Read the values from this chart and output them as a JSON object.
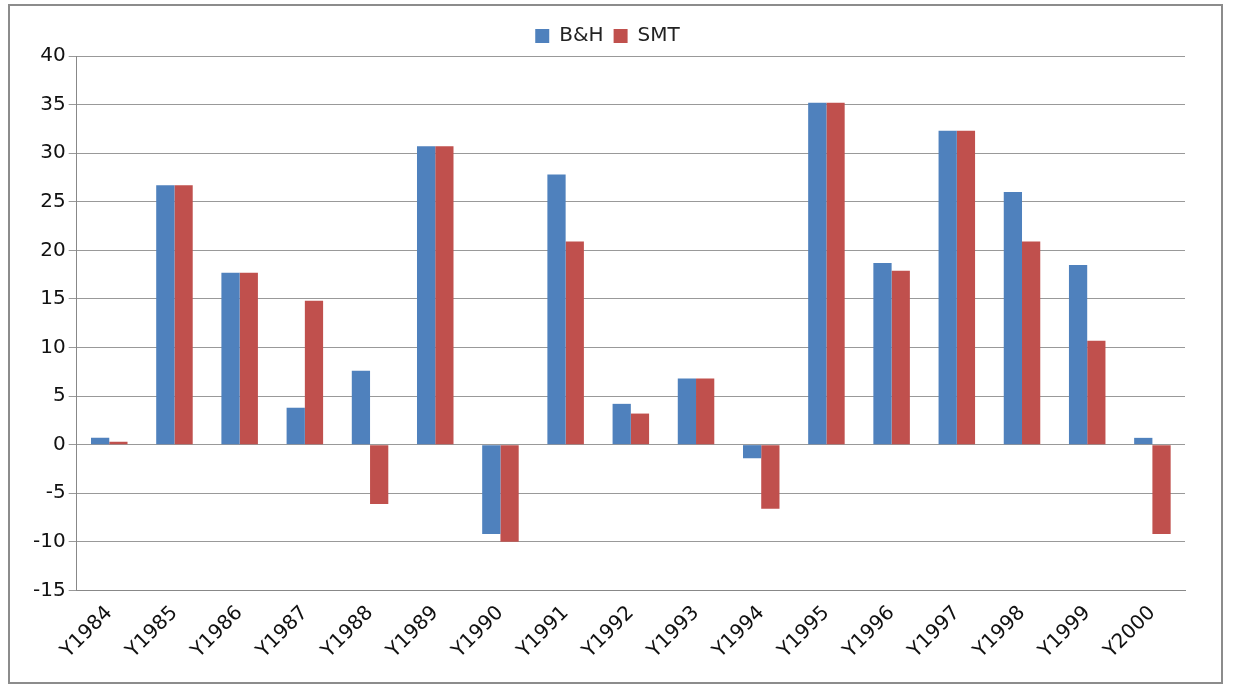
{
  "chart_data": {
    "type": "bar",
    "categories": [
      "Y1984",
      "Y1985",
      "Y1986",
      "Y1987",
      "Y1988",
      "Y1989",
      "Y1990",
      "Y1991",
      "Y1992",
      "Y1993",
      "Y1994",
      "Y1995",
      "Y1996",
      "Y1997",
      "Y1998",
      "Y1999",
      "Y2000"
    ],
    "series": [
      {
        "name": "B&H",
        "color": "#4f81bd",
        "values": [
          0.7,
          26.7,
          17.7,
          3.8,
          7.6,
          30.7,
          -9.2,
          27.8,
          4.2,
          6.8,
          -1.4,
          35.2,
          18.7,
          32.3,
          26.0,
          18.5,
          0.7
        ]
      },
      {
        "name": "SMT",
        "color": "#c0504d",
        "values": [
          0.3,
          26.7,
          17.7,
          14.8,
          -6.1,
          30.7,
          -10.0,
          20.9,
          3.2,
          6.8,
          -6.6,
          35.2,
          17.9,
          32.3,
          20.9,
          10.7,
          -9.2
        ]
      }
    ],
    "ylim": [
      -15,
      40
    ],
    "yticks": [
      -15,
      -10,
      -5,
      0,
      5,
      10,
      15,
      20,
      25,
      30,
      35,
      40
    ],
    "grid": "y",
    "legend": "top"
  }
}
